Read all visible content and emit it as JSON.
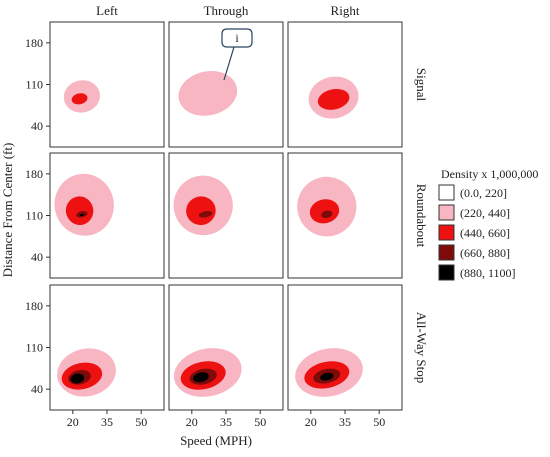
{
  "chart_data": {
    "type": "density-contour",
    "column_facets": [
      "Left",
      "Through",
      "Right"
    ],
    "row_facets": [
      "Signal",
      "Roundabout",
      "All-Way Stop"
    ],
    "xlabel": "Speed (MPH)",
    "ylabel": "Distance From Center (ft)",
    "x_ticks": [
      20,
      35,
      50
    ],
    "y_ticks": [
      40,
      110,
      180
    ],
    "xlim": [
      10,
      60
    ],
    "ylim": [
      5,
      215
    ],
    "legend": {
      "title": "Density x 1,000,000",
      "position": "right",
      "bins": [
        {
          "label": "(0.0, 220]",
          "color": "#ffffff"
        },
        {
          "label": "(220, 440]",
          "color": "#f7b6c2"
        },
        {
          "label": "(440, 660]",
          "color": "#ee1111"
        },
        {
          "label": "(660, 880]",
          "color": "#7f0a0a"
        },
        {
          "label": "(880, 1100]",
          "color": "#000000"
        }
      ]
    },
    "annotation": {
      "text": "i",
      "target_facet": [
        "Signal",
        "Through"
      ]
    },
    "panels": [
      {
        "row": 0,
        "col": 0,
        "levels": [
          {
            "bin": 1,
            "cx": 24,
            "cy": 90,
            "rx": 8,
            "ry": 27
          },
          {
            "bin": 2,
            "cx": 23,
            "cy": 86,
            "rx": 3.5,
            "ry": 9
          }
        ]
      },
      {
        "row": 0,
        "col": 1,
        "levels": [
          {
            "bin": 1,
            "cx": 27,
            "cy": 95,
            "rx": 13,
            "ry": 37
          }
        ]
      },
      {
        "row": 0,
        "col": 2,
        "levels": [
          {
            "bin": 1,
            "cx": 30,
            "cy": 88,
            "rx": 11,
            "ry": 35
          },
          {
            "bin": 2,
            "cx": 30,
            "cy": 85,
            "rx": 7,
            "ry": 17
          }
        ]
      },
      {
        "row": 1,
        "col": 0,
        "levels": [
          {
            "bin": 1,
            "cx": 25,
            "cy": 128,
            "rx": 13,
            "ry": 52
          },
          {
            "bin": 2,
            "cx": 23,
            "cy": 118,
            "rx": 6,
            "ry": 24
          },
          {
            "bin": 3,
            "cx": 24,
            "cy": 112,
            "rx": 2.5,
            "ry": 5
          },
          {
            "bin": 4,
            "cx": 24,
            "cy": 111,
            "rx": 1,
            "ry": 1.5
          }
        ]
      },
      {
        "row": 1,
        "col": 1,
        "levels": [
          {
            "bin": 1,
            "cx": 25,
            "cy": 127,
            "rx": 13,
            "ry": 50
          },
          {
            "bin": 2,
            "cx": 24,
            "cy": 118,
            "rx": 6.5,
            "ry": 24
          },
          {
            "bin": 3,
            "cx": 26,
            "cy": 112,
            "rx": 3,
            "ry": 5
          }
        ]
      },
      {
        "row": 1,
        "col": 2,
        "levels": [
          {
            "bin": 1,
            "cx": 27,
            "cy": 125,
            "rx": 13,
            "ry": 50
          },
          {
            "bin": 2,
            "cx": 26,
            "cy": 117,
            "rx": 6.5,
            "ry": 20
          },
          {
            "bin": 3,
            "cx": 27,
            "cy": 112,
            "rx": 2.5,
            "ry": 6
          }
        ]
      },
      {
        "row": 2,
        "col": 0,
        "levels": [
          {
            "bin": 1,
            "cx": 26,
            "cy": 68,
            "rx": 13,
            "ry": 40
          },
          {
            "bin": 2,
            "cx": 24,
            "cy": 62,
            "rx": 9,
            "ry": 22
          },
          {
            "bin": 3,
            "cx": 23,
            "cy": 60,
            "rx": 5,
            "ry": 12
          },
          {
            "bin": 4,
            "cx": 22,
            "cy": 58,
            "rx": 3,
            "ry": 8
          }
        ]
      },
      {
        "row": 2,
        "col": 1,
        "levels": [
          {
            "bin": 1,
            "cx": 27,
            "cy": 68,
            "rx": 15,
            "ry": 40
          },
          {
            "bin": 2,
            "cx": 25,
            "cy": 63,
            "rx": 10,
            "ry": 23
          },
          {
            "bin": 3,
            "cx": 25,
            "cy": 61,
            "rx": 6,
            "ry": 13
          },
          {
            "bin": 4,
            "cx": 24,
            "cy": 60,
            "rx": 3.5,
            "ry": 8
          }
        ]
      },
      {
        "row": 2,
        "col": 2,
        "levels": [
          {
            "bin": 1,
            "cx": 28,
            "cy": 68,
            "rx": 15,
            "ry": 40
          },
          {
            "bin": 2,
            "cx": 27,
            "cy": 64,
            "rx": 10,
            "ry": 22
          },
          {
            "bin": 3,
            "cx": 27,
            "cy": 62,
            "rx": 6,
            "ry": 12
          },
          {
            "bin": 4,
            "cx": 27,
            "cy": 61,
            "rx": 3,
            "ry": 6
          }
        ]
      }
    ]
  }
}
